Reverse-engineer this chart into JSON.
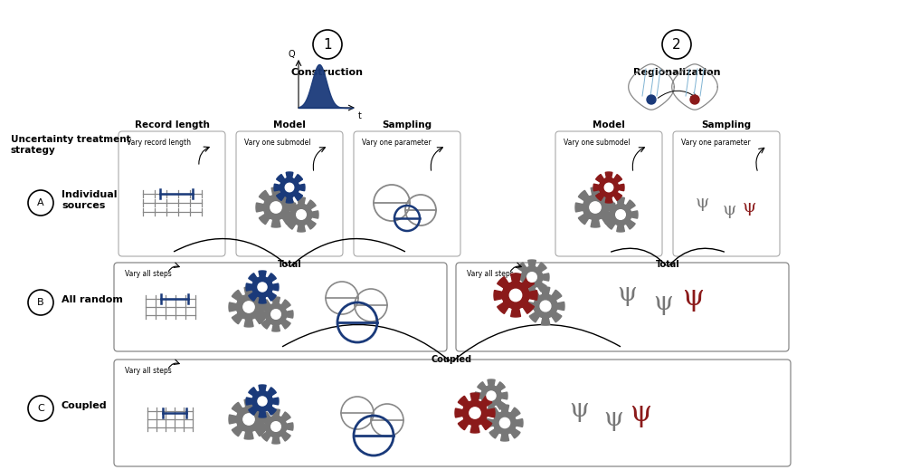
{
  "bg_color": "#ffffff",
  "construction_label": "Construction",
  "regionalization_label": "Regionalization",
  "strategy_label": "Uncertainty treatment\nstrategy",
  "row_A_label": "Individual\nsources",
  "row_B_label": "All random",
  "row_C_label": "Coupled",
  "dark_gray": "#555555",
  "blue_color": "#1a3a7a",
  "red_color": "#8b1a1a",
  "light_gray": "#777777"
}
